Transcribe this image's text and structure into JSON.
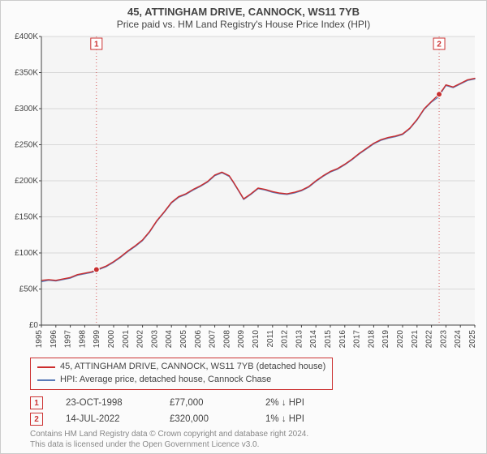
{
  "title": "45, ATTINGHAM DRIVE, CANNOCK, WS11 7YB",
  "subtitle": "Price paid vs. HM Land Registry's House Price Index (HPI)",
  "chart": {
    "type": "line",
    "plot_bg": "#f5f5f5",
    "page_bg": "#fbfbfb",
    "grid_color": "#d8d8d8",
    "axis_color": "#444444",
    "tick_label_color": "#444444",
    "tick_fontsize": 10,
    "x": {
      "start": 1995,
      "end": 2025,
      "ticks": [
        1995,
        1996,
        1997,
        1998,
        1999,
        2000,
        2001,
        2002,
        2003,
        2004,
        2005,
        2006,
        2007,
        2008,
        2009,
        2010,
        2011,
        2012,
        2013,
        2014,
        2015,
        2016,
        2017,
        2018,
        2019,
        2020,
        2021,
        2022,
        2023,
        2024,
        2025
      ]
    },
    "y": {
      "min": 0,
      "max": 400000,
      "step": 50000,
      "labels": [
        "£0",
        "£50K",
        "£100K",
        "£150K",
        "£200K",
        "£250K",
        "£300K",
        "£350K",
        "£400K"
      ],
      "label_fontsize": 10
    },
    "series": [
      {
        "key": "subject",
        "color": "#cc2d2d",
        "width": 1.4,
        "points": [
          [
            1995.0,
            62000
          ],
          [
            1995.5,
            63000
          ],
          [
            1996.0,
            62000
          ],
          [
            1996.5,
            64000
          ],
          [
            1997.0,
            66000
          ],
          [
            1997.5,
            70000
          ],
          [
            1998.0,
            72000
          ],
          [
            1998.5,
            74000
          ],
          [
            1998.81,
            77000
          ],
          [
            1999.0,
            78000
          ],
          [
            1999.5,
            82000
          ],
          [
            2000.0,
            88000
          ],
          [
            2000.5,
            95000
          ],
          [
            2001.0,
            103000
          ],
          [
            2001.5,
            110000
          ],
          [
            2002.0,
            118000
          ],
          [
            2002.5,
            130000
          ],
          [
            2003.0,
            145000
          ],
          [
            2003.5,
            157000
          ],
          [
            2004.0,
            170000
          ],
          [
            2004.5,
            178000
          ],
          [
            2005.0,
            182000
          ],
          [
            2005.5,
            188000
          ],
          [
            2006.0,
            193000
          ],
          [
            2006.5,
            199000
          ],
          [
            2007.0,
            208000
          ],
          [
            2007.5,
            212000
          ],
          [
            2008.0,
            207000
          ],
          [
            2008.3,
            198000
          ],
          [
            2008.7,
            185000
          ],
          [
            2009.0,
            175000
          ],
          [
            2009.5,
            182000
          ],
          [
            2010.0,
            190000
          ],
          [
            2010.5,
            188000
          ],
          [
            2011.0,
            185000
          ],
          [
            2011.5,
            183000
          ],
          [
            2012.0,
            182000
          ],
          [
            2012.5,
            184000
          ],
          [
            2013.0,
            187000
          ],
          [
            2013.5,
            192000
          ],
          [
            2014.0,
            200000
          ],
          [
            2014.5,
            207000
          ],
          [
            2015.0,
            213000
          ],
          [
            2015.5,
            217000
          ],
          [
            2016.0,
            223000
          ],
          [
            2016.5,
            230000
          ],
          [
            2017.0,
            238000
          ],
          [
            2017.5,
            245000
          ],
          [
            2018.0,
            252000
          ],
          [
            2018.5,
            257000
          ],
          [
            2019.0,
            260000
          ],
          [
            2019.5,
            262000
          ],
          [
            2020.0,
            265000
          ],
          [
            2020.5,
            273000
          ],
          [
            2021.0,
            285000
          ],
          [
            2021.5,
            300000
          ],
          [
            2022.0,
            310000
          ],
          [
            2022.53,
            320000
          ],
          [
            2022.8,
            327000
          ],
          [
            2023.0,
            333000
          ],
          [
            2023.5,
            330000
          ],
          [
            2024.0,
            335000
          ],
          [
            2024.5,
            340000
          ],
          [
            2025.0,
            342000
          ]
        ]
      },
      {
        "key": "hpi",
        "color": "#5a7bb8",
        "width": 1.2,
        "points": [
          [
            1995.0,
            60000
          ],
          [
            1995.5,
            62000
          ],
          [
            1996.0,
            61000
          ],
          [
            1996.5,
            63000
          ],
          [
            1997.0,
            65000
          ],
          [
            1997.5,
            69000
          ],
          [
            1998.0,
            71000
          ],
          [
            1998.5,
            73000
          ],
          [
            1998.81,
            75500
          ],
          [
            1999.0,
            77000
          ],
          [
            1999.5,
            81000
          ],
          [
            2000.0,
            87000
          ],
          [
            2000.5,
            94000
          ],
          [
            2001.0,
            102000
          ],
          [
            2001.5,
            109000
          ],
          [
            2002.0,
            117000
          ],
          [
            2002.5,
            129000
          ],
          [
            2003.0,
            144000
          ],
          [
            2003.5,
            156000
          ],
          [
            2004.0,
            169000
          ],
          [
            2004.5,
            177000
          ],
          [
            2005.0,
            181000
          ],
          [
            2005.5,
            187000
          ],
          [
            2006.0,
            192000
          ],
          [
            2006.5,
            198000
          ],
          [
            2007.0,
            207000
          ],
          [
            2007.5,
            211000
          ],
          [
            2008.0,
            206000
          ],
          [
            2008.3,
            197000
          ],
          [
            2008.7,
            184000
          ],
          [
            2009.0,
            174000
          ],
          [
            2009.5,
            181000
          ],
          [
            2010.0,
            189000
          ],
          [
            2010.5,
            187000
          ],
          [
            2011.0,
            184000
          ],
          [
            2011.5,
            182000
          ],
          [
            2012.0,
            181000
          ],
          [
            2012.5,
            183000
          ],
          [
            2013.0,
            186000
          ],
          [
            2013.5,
            191000
          ],
          [
            2014.0,
            199000
          ],
          [
            2014.5,
            206000
          ],
          [
            2015.0,
            212000
          ],
          [
            2015.5,
            216000
          ],
          [
            2016.0,
            222000
          ],
          [
            2016.5,
            229000
          ],
          [
            2017.0,
            237000
          ],
          [
            2017.5,
            244000
          ],
          [
            2018.0,
            251000
          ],
          [
            2018.5,
            256000
          ],
          [
            2019.0,
            259000
          ],
          [
            2019.5,
            261000
          ],
          [
            2020.0,
            264000
          ],
          [
            2020.5,
            272000
          ],
          [
            2021.0,
            284000
          ],
          [
            2021.5,
            299000
          ],
          [
            2022.0,
            309000
          ],
          [
            2022.53,
            316800
          ],
          [
            2022.8,
            326000
          ],
          [
            2023.0,
            332000
          ],
          [
            2023.5,
            329000
          ],
          [
            2024.0,
            334000
          ],
          [
            2024.5,
            339000
          ],
          [
            2025.0,
            341000
          ]
        ]
      }
    ],
    "event_lines": {
      "color": "#cc3333",
      "dash": "1,3",
      "width": 0.8,
      "marker_box_border": "#cc3333",
      "marker_box_bg": "#ffffff",
      "marker_fontsize": 10
    },
    "events": [
      {
        "n": "1",
        "x": 1998.81,
        "price": 77000,
        "label_date": "23-OCT-1998",
        "label_price": "£77,000",
        "vs_hpi": "2% ↓ HPI"
      },
      {
        "n": "2",
        "x": 2022.53,
        "price": 320000,
        "label_date": "14-JUL-2022",
        "label_price": "£320,000",
        "vs_hpi": "1% ↓ HPI"
      }
    ],
    "event_marker": {
      "fill": "#c83030",
      "stroke": "#ffffff",
      "radius": 3.5
    }
  },
  "legend": {
    "border_color": "#cc3333",
    "items": [
      {
        "color": "#cc2d2d",
        "label": "45, ATTINGHAM DRIVE, CANNOCK, WS11 7YB (detached house)"
      },
      {
        "color": "#5a7bb8",
        "label": "HPI: Average price, detached house, Cannock Chase"
      }
    ]
  },
  "attrib": {
    "line1": "Contains HM Land Registry data © Crown copyright and database right 2024.",
    "line2": "This data is licensed under the Open Government Licence v3.0.",
    "color": "#888888"
  }
}
